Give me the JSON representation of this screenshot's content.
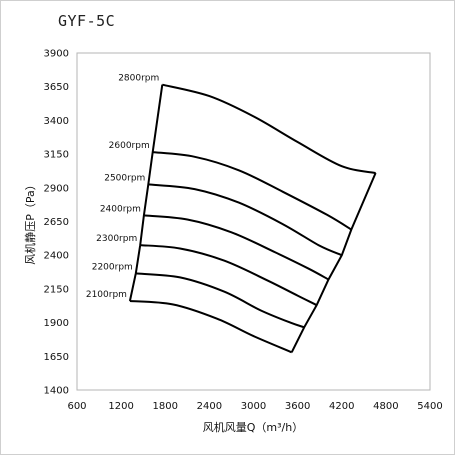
{
  "chart_data": {
    "type": "line",
    "title": "GYF-5C",
    "xlabel": "风机风量Q（m³/h）",
    "ylabel": "风机静压P（Pa）",
    "xlim": [
      600,
      5400
    ],
    "ylim": [
      1400,
      3900
    ],
    "xticks": [
      600,
      1200,
      1800,
      2400,
      3000,
      3600,
      4200,
      4800,
      5400
    ],
    "yticks": [
      1400,
      1650,
      1900,
      2150,
      2400,
      2650,
      2900,
      3150,
      3400,
      3650,
      3900
    ],
    "grid": false,
    "series": [
      {
        "name": "2800rpm",
        "x": [
          1760,
          2400,
          3000,
          3600,
          4200,
          4660
        ],
        "y": [
          3665,
          3580,
          3430,
          3240,
          3060,
          3010
        ]
      },
      {
        "name": "2600rpm",
        "x": [
          1630,
          2200,
          2800,
          3400,
          4000,
          4330
        ],
        "y": [
          3165,
          3130,
          3030,
          2870,
          2700,
          2590
        ]
      },
      {
        "name": "2500rpm",
        "x": [
          1570,
          2200,
          2800,
          3400,
          3900,
          4200
        ],
        "y": [
          2925,
          2890,
          2790,
          2630,
          2470,
          2400
        ]
      },
      {
        "name": "2400rpm",
        "x": [
          1510,
          2100,
          2700,
          3300,
          3750,
          4020
        ],
        "y": [
          2695,
          2665,
          2570,
          2420,
          2300,
          2220
        ]
      },
      {
        "name": "2300rpm",
        "x": [
          1460,
          2000,
          2600,
          3200,
          3600,
          3860
        ],
        "y": [
          2475,
          2450,
          2360,
          2210,
          2100,
          2030
        ]
      },
      {
        "name": "2200rpm",
        "x": [
          1400,
          2000,
          2600,
          3100,
          3500,
          3690
        ],
        "y": [
          2265,
          2235,
          2130,
          1990,
          1900,
          1865
        ]
      },
      {
        "name": "2100rpm",
        "x": [
          1320,
          1900,
          2500,
          3000,
          3520
        ],
        "y": [
          2060,
          2035,
          1930,
          1800,
          1680
        ]
      }
    ]
  }
}
